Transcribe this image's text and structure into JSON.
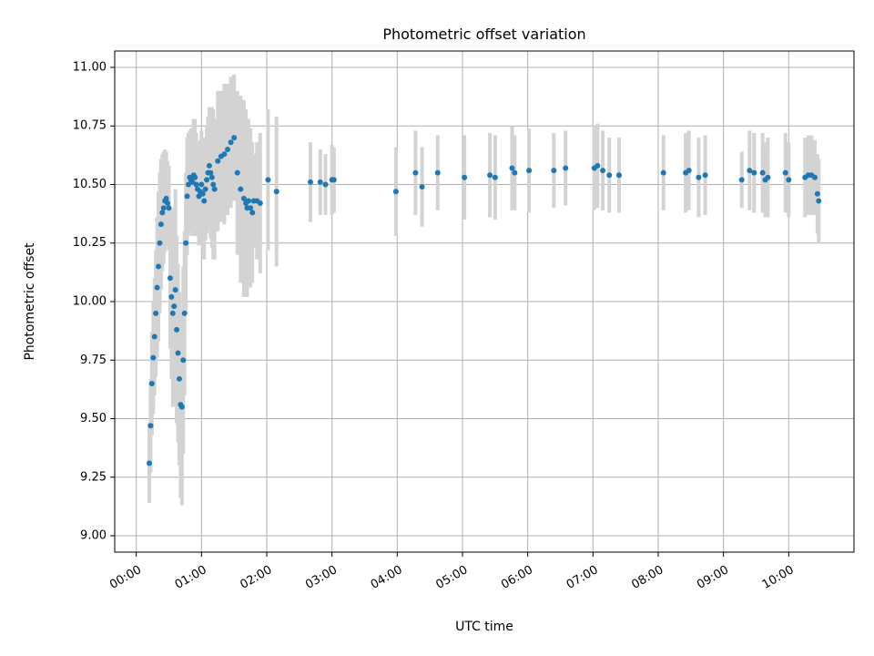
{
  "chart_data": {
    "type": "scatter",
    "title": "Photometric offset variation",
    "xlabel": "UTC time",
    "ylabel": "Photometric offset",
    "x_unit": "hours UTC",
    "xlim": [
      -0.33,
      11.0
    ],
    "ylim": [
      8.93,
      11.07
    ],
    "grid": true,
    "legend": "none",
    "x_ticks": [
      {
        "value": 0,
        "label": "00:00"
      },
      {
        "value": 1,
        "label": "01:00"
      },
      {
        "value": 2,
        "label": "02:00"
      },
      {
        "value": 3,
        "label": "03:00"
      },
      {
        "value": 4,
        "label": "04:00"
      },
      {
        "value": 5,
        "label": "05:00"
      },
      {
        "value": 6,
        "label": "06:00"
      },
      {
        "value": 7,
        "label": "07:00"
      },
      {
        "value": 8,
        "label": "08:00"
      },
      {
        "value": 9,
        "label": "09:00"
      },
      {
        "value": 10,
        "label": "10:00"
      }
    ],
    "y_ticks": [
      {
        "value": 9.0,
        "label": "9.00"
      },
      {
        "value": 9.25,
        "label": "9.25"
      },
      {
        "value": 9.5,
        "label": "9.50"
      },
      {
        "value": 9.75,
        "label": "9.75"
      },
      {
        "value": 10.0,
        "label": "10.00"
      },
      {
        "value": 10.25,
        "label": "10.25"
      },
      {
        "value": 10.5,
        "label": "10.50"
      },
      {
        "value": 10.75,
        "label": "10.75"
      },
      {
        "value": 11.0,
        "label": "11.00"
      }
    ],
    "colors": {
      "points": "#1f77b4",
      "errorbars": "#d3d3d3",
      "grid": "#b0b0b0"
    },
    "series": [
      {
        "x": [
          0.2,
          0.22,
          0.24,
          0.26,
          0.28,
          0.3,
          0.32,
          0.34,
          0.36,
          0.38,
          0.4,
          0.42,
          0.44,
          0.46,
          0.48,
          0.5,
          0.52,
          0.54,
          0.56,
          0.58,
          0.6,
          0.62,
          0.64,
          0.66,
          0.68,
          0.7,
          0.72,
          0.74,
          0.76,
          0.78,
          0.8,
          0.82,
          0.84,
          0.86,
          0.88,
          0.9,
          0.92,
          0.94,
          0.96,
          0.98,
          1.0,
          1.02,
          1.04,
          1.06,
          1.08,
          1.1,
          1.12,
          1.14,
          1.16,
          1.18,
          1.2,
          1.25,
          1.3,
          1.35,
          1.4,
          1.45,
          1.5,
          1.55,
          1.6,
          1.65,
          1.68,
          1.7,
          1.72,
          1.75,
          1.78,
          1.8,
          1.85,
          1.9,
          2.02,
          2.15,
          2.67,
          2.82,
          2.9,
          3.0,
          3.03,
          3.98,
          4.28,
          4.38,
          4.62,
          5.03,
          5.42,
          5.5,
          5.76,
          5.8,
          6.02,
          6.4,
          6.58,
          7.02,
          7.07,
          7.15,
          7.25,
          7.4,
          8.08,
          8.42,
          8.47,
          8.62,
          8.72,
          9.28,
          9.4,
          9.47,
          9.6,
          9.64,
          9.68,
          9.95,
          10.0,
          10.25,
          10.3,
          10.35,
          10.4,
          10.44,
          10.46
        ],
        "y": [
          9.31,
          9.47,
          9.65,
          9.76,
          9.85,
          9.95,
          10.06,
          10.15,
          10.25,
          10.33,
          10.38,
          10.4,
          10.43,
          10.44,
          10.42,
          10.4,
          10.1,
          10.02,
          9.95,
          9.98,
          10.05,
          9.88,
          9.78,
          9.67,
          9.56,
          9.55,
          9.75,
          9.95,
          10.25,
          10.45,
          10.5,
          10.53,
          10.52,
          10.51,
          10.54,
          10.53,
          10.5,
          10.48,
          10.45,
          10.47,
          10.5,
          10.46,
          10.43,
          10.48,
          10.52,
          10.55,
          10.58,
          10.55,
          10.53,
          10.5,
          10.48,
          10.6,
          10.62,
          10.63,
          10.65,
          10.68,
          10.7,
          10.55,
          10.48,
          10.44,
          10.42,
          10.4,
          10.43,
          10.4,
          10.38,
          10.43,
          10.43,
          10.42,
          10.52,
          10.47,
          10.51,
          10.51,
          10.5,
          10.52,
          10.52,
          10.47,
          10.55,
          10.49,
          10.55,
          10.53,
          10.54,
          10.53,
          10.57,
          10.55,
          10.56,
          10.56,
          10.57,
          10.57,
          10.58,
          10.56,
          10.54,
          10.54,
          10.55,
          10.55,
          10.56,
          10.53,
          10.54,
          10.52,
          10.56,
          10.55,
          10.55,
          10.52,
          10.53,
          10.55,
          10.52,
          10.53,
          10.54,
          10.54,
          10.53,
          10.46,
          10.43
        ],
        "yerr": [
          0.17,
          0.2,
          0.22,
          0.24,
          0.25,
          0.27,
          0.3,
          0.32,
          0.3,
          0.28,
          0.25,
          0.24,
          0.22,
          0.2,
          0.18,
          0.18,
          0.3,
          0.35,
          0.4,
          0.42,
          0.43,
          0.4,
          0.38,
          0.37,
          0.4,
          0.42,
          0.4,
          0.35,
          0.3,
          0.25,
          0.22,
          0.2,
          0.22,
          0.23,
          0.24,
          0.25,
          0.22,
          0.2,
          0.21,
          0.22,
          0.23,
          0.24,
          0.25,
          0.22,
          0.23,
          0.24,
          0.25,
          0.28,
          0.3,
          0.32,
          0.3,
          0.3,
          0.28,
          0.3,
          0.28,
          0.28,
          0.27,
          0.35,
          0.4,
          0.42,
          0.4,
          0.38,
          0.35,
          0.34,
          0.3,
          0.2,
          0.25,
          0.3,
          0.3,
          0.32,
          0.17,
          0.14,
          0.13,
          0.15,
          0.14,
          0.19,
          0.18,
          0.17,
          0.16,
          0.18,
          0.18,
          0.18,
          0.18,
          0.16,
          0.18,
          0.16,
          0.16,
          0.18,
          0.18,
          0.17,
          0.16,
          0.16,
          0.16,
          0.17,
          0.17,
          0.17,
          0.17,
          0.12,
          0.17,
          0.17,
          0.17,
          0.16,
          0.17,
          0.17,
          0.16,
          0.17,
          0.17,
          0.17,
          0.16,
          0.17,
          0.18
        ]
      }
    ]
  }
}
